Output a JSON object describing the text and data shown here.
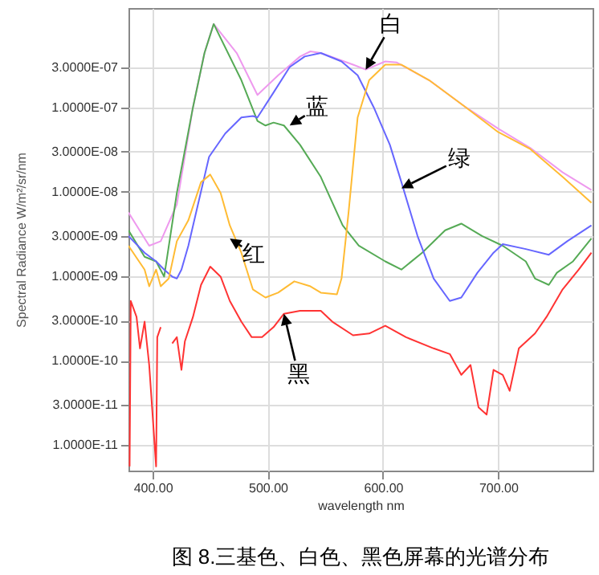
{
  "chart_data": {
    "type": "line",
    "title": "图 8.三基色、白色、黑色屏幕的光谱分布",
    "xlabel": "wavelength nm",
    "ylabel": "Spectral Radiance W/m²/sr/nm",
    "log": "y",
    "grid": true,
    "xlim": [
      379,
      782
    ],
    "xticks": [
      {
        "value": 400,
        "label": "400.00"
      },
      {
        "value": 500,
        "label": "500.00"
      },
      {
        "value": 600,
        "label": "600.00"
      },
      {
        "value": 700,
        "label": "700.00"
      }
    ],
    "ylim": [
      5e-12,
      1.5e-06
    ],
    "yticks": [
      {
        "value": 1e-11,
        "label": "1.0000E-11"
      },
      {
        "value": 3e-11,
        "label": "3.0000E-11"
      },
      {
        "value": 1e-10,
        "label": "1.0000E-10"
      },
      {
        "value": 3e-10,
        "label": "3.0000E-10"
      },
      {
        "value": 1e-09,
        "label": "1.0000E-09"
      },
      {
        "value": 3e-09,
        "label": "3.0000E-09"
      },
      {
        "value": 1e-08,
        "label": "1.0000E-08"
      },
      {
        "value": 3e-08,
        "label": "3.0000E-08"
      },
      {
        "value": 1e-07,
        "label": "1.0000E-07"
      },
      {
        "value": 3e-07,
        "label": "3.0000E-07"
      }
    ],
    "series": [
      {
        "color": "#ee99ee",
        "x": [
          379,
          397,
          407,
          421,
          435,
          445,
          453,
          473,
          491,
          509,
          528,
          537,
          546,
          574,
          585,
          602,
          612,
          640,
          672,
          700,
          728,
          756,
          781
        ],
        "values": [
          5.7e-09,
          2.3e-09,
          2.6e-09,
          7.1e-09,
          1e-07,
          4.4e-07,
          9.7e-07,
          4.4e-07,
          1.4e-07,
          2.4e-07,
          4e-07,
          4.6e-07,
          4.4e-07,
          3.2e-07,
          2.8e-07,
          3.5e-07,
          3.4e-07,
          2.1e-07,
          1e-07,
          5.6e-08,
          3.3e-08,
          1.7e-08,
          1.05e-08
        ]
      },
      {
        "color": "#55aa55",
        "x": [
          379,
          393,
          403,
          410,
          421,
          435,
          445,
          453,
          477,
          491,
          498,
          505,
          514,
          528,
          546,
          565,
          579,
          602,
          616,
          634,
          654,
          668,
          686,
          704,
          724,
          732,
          744,
          751,
          765,
          781
        ],
        "values": [
          3.5e-09,
          1.7e-09,
          1.5e-09,
          9.9e-10,
          9.7e-09,
          1e-07,
          4.4e-07,
          9.7e-07,
          2.1e-07,
          6.9e-08,
          6.1e-08,
          6.6e-08,
          6.1e-08,
          3.6e-08,
          1.5e-08,
          4e-09,
          2.3e-09,
          1.5e-09,
          1.2e-09,
          1.9e-09,
          3.5e-09,
          4.2e-09,
          3e-09,
          2.3e-09,
          1.5e-09,
          9.4e-10,
          7.9e-10,
          1.1e-09,
          1.5e-09,
          2.8e-09
        ]
      },
      {
        "color": "#6666ff",
        "x": [
          379,
          393,
          403,
          410,
          417,
          421,
          425,
          431,
          449,
          463,
          477,
          487,
          491,
          505,
          519,
          532,
          546,
          564,
          578,
          592,
          606,
          616,
          630,
          644,
          658,
          668,
          682,
          696,
          704,
          724,
          744,
          760,
          781
        ],
        "values": [
          3e-09,
          1.9e-09,
          1.5e-09,
          1.2e-09,
          9.9e-10,
          9.4e-10,
          1.2e-09,
          2.3e-09,
          2.6e-08,
          4.9e-08,
          7.6e-08,
          7.9e-08,
          7.6e-08,
          1.5e-07,
          3e-07,
          4e-07,
          4.4e-07,
          3.5e-07,
          2.4e-07,
          1e-07,
          3.6e-08,
          1.3e-08,
          3e-09,
          9.4e-10,
          5.1e-10,
          5.6e-10,
          1.1e-09,
          1.9e-09,
          2.4e-09,
          2.1e-09,
          1.8e-09,
          2.6e-09,
          4e-09
        ]
      },
      {
        "color": "#ffbb33",
        "x": [
          379,
          393,
          397,
          403,
          407,
          414,
          421,
          431,
          442,
          450,
          459,
          467,
          477,
          487,
          498,
          509,
          523,
          537,
          546,
          560,
          564,
          570,
          578,
          588,
          602,
          616,
          640,
          672,
          700,
          728,
          756,
          781
        ],
        "values": [
          2.3e-09,
          1.2e-09,
          7.6e-10,
          1.2e-09,
          7.6e-10,
          9.4e-10,
          2.6e-09,
          4.6e-09,
          1.3e-08,
          1.6e-08,
          9.7e-09,
          4e-09,
          1.9e-09,
          7e-10,
          5.6e-10,
          6.4e-10,
          8.7e-10,
          7.6e-10,
          6.4e-10,
          6.1e-10,
          9.4e-10,
          5.5e-09,
          7.6e-08,
          2.1e-07,
          3.2e-07,
          3.2e-07,
          2.1e-07,
          1e-07,
          5.1e-08,
          3.2e-08,
          1.5e-08,
          7.4e-09
        ]
      },
      {
        "color": "#ff3333",
        "x": [
          380,
          381,
          386,
          389,
          393,
          397,
          403,
          404,
          407,
          410,
          413,
          415,
          417,
          421,
          425,
          428,
          435,
          442,
          450,
          459,
          467,
          477,
          486,
          495,
          505,
          514,
          528,
          546,
          556,
          574,
          588,
          602,
          620,
          644,
          658,
          668,
          676,
          683,
          690,
          696,
          704,
          710,
          718,
          732,
          742,
          756,
          770,
          781
        ],
        "values": [
          5.6e-12,
          5.1e-10,
          3.3e-10,
          1.4e-10,
          2.9e-10,
          8.9e-11,
          5.6e-12,
          1.9e-10,
          2.5e-10,
          null,
          null,
          null,
          1.6e-10,
          1.9e-10,
          7.8e-11,
          1.7e-10,
          3.3e-10,
          7.9e-10,
          1.3e-09,
          9.9e-10,
          5.1e-10,
          2.9e-10,
          1.9e-10,
          1.9e-10,
          2.5e-10,
          3.6e-10,
          3.9e-10,
          3.9e-10,
          2.9e-10,
          2e-10,
          2.1e-10,
          2.6e-10,
          1.9e-10,
          1.4e-10,
          1.2e-10,
          6.8e-11,
          8.9e-11,
          2.8e-11,
          2.3e-11,
          7.8e-11,
          6.8e-11,
          4.4e-11,
          1.4e-10,
          2.1e-10,
          3.3e-10,
          7e-10,
          1.2e-09,
          1.9e-09
        ]
      }
    ],
    "annotations": [
      {
        "text": "白",
        "x": 585,
        "y": 2.8e-07
      },
      {
        "text": "蓝",
        "x": 519,
        "y": 6.1e-08
      },
      {
        "text": "绿",
        "x": 616,
        "y": 1.1e-08
      },
      {
        "text": "红",
        "x": 467,
        "y": 2.8e-09
      },
      {
        "text": "黑",
        "x": 514,
        "y": 3.6e-10
      }
    ]
  }
}
